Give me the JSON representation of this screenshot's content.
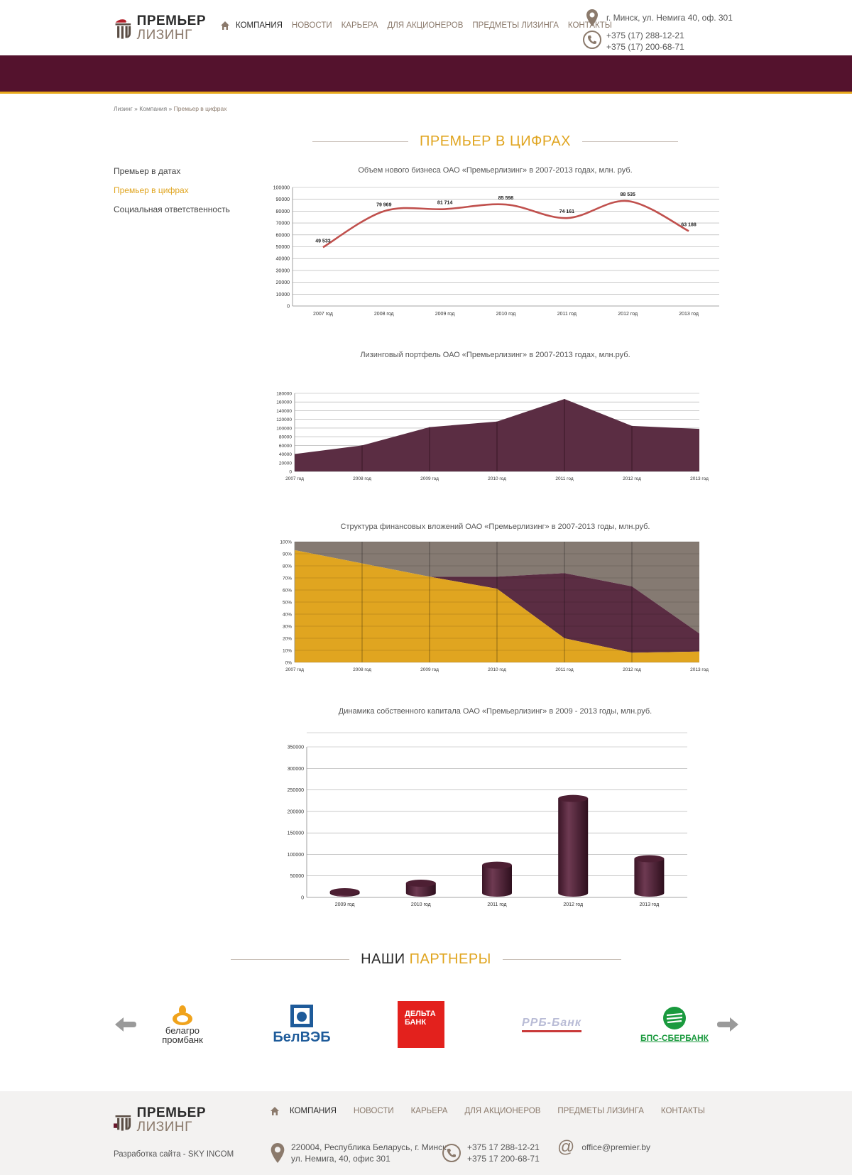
{
  "header": {
    "logo": {
      "line1": "ПРЕМЬЕР",
      "line2": "ЛИЗИНГ"
    },
    "nav": [
      {
        "label": "КОМПАНИЯ",
        "active": true
      },
      {
        "label": "НОВОСТИ"
      },
      {
        "label": "КАРЬЕРА"
      },
      {
        "label": "ДЛЯ АКЦИОНЕРОВ"
      },
      {
        "label": "ПРЕДМЕТЫ ЛИЗИНГА"
      },
      {
        "label": "КОНТАКТЫ"
      }
    ],
    "address": "г. Минск, ул. Немига 40, оф. 301",
    "phone1": "+375 (17) 288-12-21",
    "phone2": "+375 (17) 200-68-71"
  },
  "breadcrumb": {
    "home": "Лизинг",
    "sep": "»",
    "section": "Компания",
    "current": "Премьер в цифрах"
  },
  "page_title": {
    "part1": "ПРЕМЬЕР В ЦИФРАХ"
  },
  "side_menu": [
    {
      "label": "Премьер в датах"
    },
    {
      "label": "Премьер в цифрах",
      "active": true
    },
    {
      "label": "Социальная ответственность"
    }
  ],
  "colors": {
    "brand": "#54122d",
    "accent": "#e0a520",
    "line": "#c0504d",
    "area": "#5b2d43",
    "grey_area": "#857a72"
  },
  "chart_data": [
    {
      "type": "line",
      "title": "Объем нового бизнеса ОАО «Премьерлизинг» в 2007-2013 годах,  млн. руб.",
      "categories": [
        "2007 год",
        "2008 год",
        "2009 год",
        "2010 год",
        "2011 год",
        "2012 год",
        "2013 год"
      ],
      "values": [
        49533,
        79969,
        81714,
        85598,
        74161,
        88535,
        63188
      ],
      "data_labels": [
        "49 533",
        "79 969",
        "81 714",
        "85 598",
        "74 161",
        "88 535",
        "63 188"
      ],
      "ylim": [
        0,
        100000
      ],
      "yticks": [
        "0",
        "10000",
        "20000",
        "30000",
        "40000",
        "50000",
        "60000",
        "70000",
        "80000",
        "90000",
        "100000"
      ],
      "grid": true
    },
    {
      "type": "area",
      "title": "Лизинговый портфель ОАО «Премьерлизинг» в 2007-2013 годах, млн.руб.",
      "categories": [
        "2007 год",
        "2008 год",
        "2009 год",
        "2010 год",
        "2011 год",
        "2012 год",
        "2013 год"
      ],
      "values": [
        40000,
        60000,
        102000,
        115000,
        167000,
        105000,
        98000
      ],
      "ylim": [
        0,
        180000
      ],
      "yticks": [
        "0",
        "20000",
        "40000",
        "60000",
        "80000",
        "100000",
        "120000",
        "140000",
        "160000",
        "180000"
      ],
      "grid": true
    },
    {
      "type": "area",
      "title": "Структура финансовых вложений ОАО «Премьерлизинг» в  2007-2013 годы, млн.руб.",
      "categories": [
        "2007 год",
        "2008 год",
        "2009 год",
        "2010 год",
        "2011 год",
        "2012 год",
        "2013 год"
      ],
      "stacked_percent": true,
      "series": [
        {
          "values": [
            93,
            82,
            71,
            61,
            20,
            8,
            9
          ]
        },
        {
          "values": [
            0,
            0,
            0,
            10,
            54,
            55,
            15
          ]
        },
        {
          "values": [
            7,
            18,
            29,
            29,
            26,
            37,
            76
          ]
        }
      ],
      "ylim": [
        0,
        100
      ],
      "yticks": [
        "0%",
        "10%",
        "20%",
        "30%",
        "40%",
        "50%",
        "60%",
        "70%",
        "80%",
        "90%",
        "100%"
      ],
      "grid": true
    },
    {
      "type": "bar",
      "title": "Динамика собственного капитала ОАО «Премьерлизинг» в 2009 - 2013 годы, млн.руб.",
      "categories": [
        "2009 год",
        "2010 год",
        "2011 год",
        "2012 год",
        "2013 год"
      ],
      "values": [
        5000,
        33000,
        75000,
        230000,
        90000
      ],
      "ylim": [
        0,
        350000
      ],
      "yticks": [
        "0",
        "50000",
        "100000",
        "150000",
        "200000",
        "250000",
        "300000",
        "350000"
      ],
      "grid": true
    }
  ],
  "partners_title": {
    "part1": "НАШИ",
    "part2": "ПАРТНЕРЫ"
  },
  "partners": [
    {
      "name_l1": "белагро",
      "name_l2": "промбанк"
    },
    {
      "name": "БелВЭБ"
    },
    {
      "name_l1": "ДЕЛЬТА",
      "name_l2": "БАНК"
    },
    {
      "name": "РРБ-Банк"
    },
    {
      "name": "БПС-СБЕРБАНК"
    }
  ],
  "footer": {
    "logo": {
      "line1": "ПРЕМЬЕР",
      "line2": "ЛИЗИНГ"
    },
    "developer": "Разработка сайта - SKY INCOM",
    "nav": [
      {
        "label": "КОМПАНИЯ",
        "active": true
      },
      {
        "label": "НОВОСТИ"
      },
      {
        "label": "КАРЬЕРА"
      },
      {
        "label": "ДЛЯ АКЦИОНЕРОВ"
      },
      {
        "label": "ПРЕДМЕТЫ ЛИЗИНГА"
      },
      {
        "label": "КОНТАКТЫ"
      }
    ],
    "address_l1": "220004, Республика Беларусь, г. Минск,",
    "address_l2": "ул. Немига, 40, офис 301",
    "phone1": "+375 17 288-12-21",
    "phone2": "+375 17 200-68-71",
    "email": "office@premier.by"
  }
}
